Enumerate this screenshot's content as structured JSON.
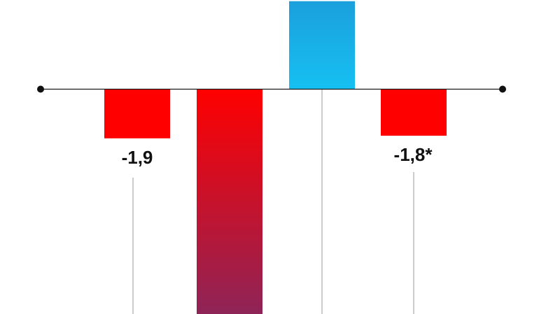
{
  "chart_data": {
    "type": "bar",
    "orientation": "vertical",
    "baseline": 0,
    "values": [
      -1.9,
      -8.7,
      3.4,
      -1.8
    ],
    "data_labels": [
      "-1,9",
      "",
      "",
      "-1,8*"
    ],
    "colors": {
      "negative": "#ff0000",
      "negative_gradient_end": "#8e2457",
      "positive_top": "#1ba0dc",
      "positive_bottom": "#16c0f2",
      "axis": "#1a1a1a",
      "leader": "#9a9a9a",
      "label": "#111111"
    },
    "axis_endpoints": true,
    "grid": false
  }
}
